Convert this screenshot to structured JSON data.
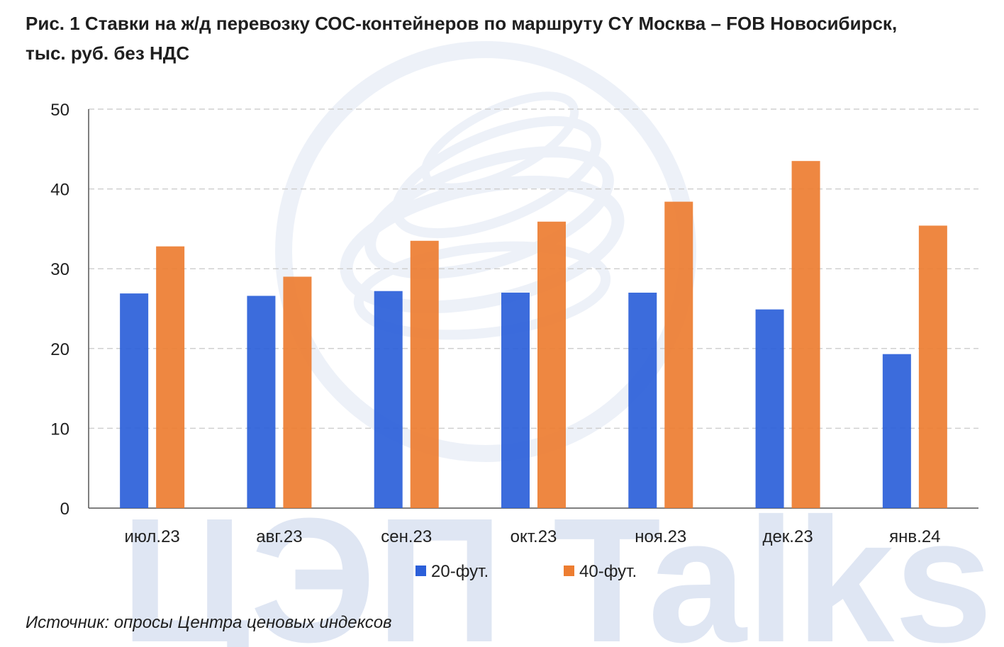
{
  "title": "Рис. 1 Ставки на ж/д перевозку СОС-контейнеров по маршруту CY Москва – FOB Новосибирск,\nтыс. руб. без НДС",
  "source": "Источник: опросы Центра ценовых индексов",
  "watermark": {
    "text": "ЦЭП Talks",
    "globe_icon": "globe-logo-icon"
  },
  "colors": {
    "series_20": "#2b5fd9",
    "series_40": "#ed7d31",
    "grid": "#d0d0d0",
    "axis": "#555555",
    "watermark": "#dfe6f3"
  },
  "chart_data": {
    "type": "bar",
    "title": "Рис. 1 Ставки на ж/д перевозку СОС-контейнеров по маршруту CY Москва – FOB Новосибирск, тыс. руб. без НДС",
    "xlabel": "",
    "ylabel": "",
    "categories": [
      "июл.23",
      "авг.23",
      "сен.23",
      "окт.23",
      "ноя.23",
      "дек.23",
      "янв.24"
    ],
    "series": [
      {
        "name": "20-фут.",
        "values": [
          26.9,
          26.6,
          27.2,
          27.0,
          27.0,
          24.9,
          19.3
        ]
      },
      {
        "name": "40-фут.",
        "values": [
          32.8,
          29.0,
          33.5,
          35.9,
          38.4,
          43.5,
          35.4
        ]
      }
    ],
    "ylim": [
      0,
      50
    ],
    "yticks": [
      0,
      10,
      20,
      30,
      40,
      50
    ],
    "grid": true,
    "legend": "bottom"
  }
}
